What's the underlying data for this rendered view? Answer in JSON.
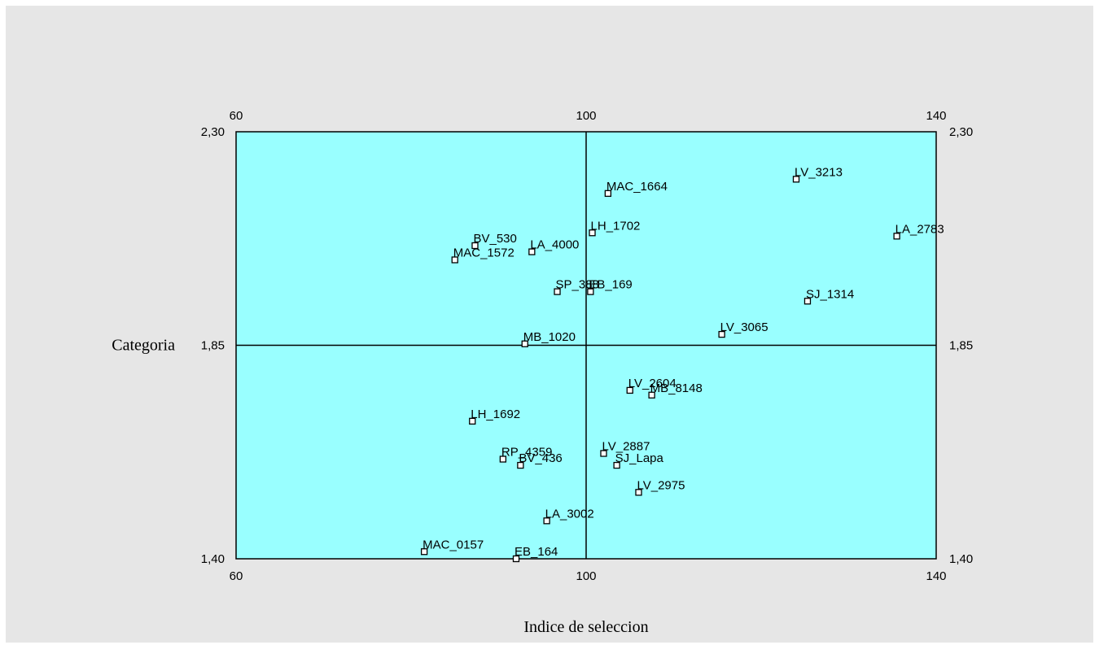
{
  "chart_data": {
    "type": "scatter",
    "title": "",
    "xlabel": "Indice de seleccion",
    "ylabel": "Categoria",
    "xlim": [
      60,
      140
    ],
    "ylim": [
      1.4,
      2.3
    ],
    "x_ticks": [
      "60",
      "100",
      "140"
    ],
    "y_ticks": [
      "1,40",
      "1,85",
      "2,30"
    ],
    "x_ref": 100,
    "y_ref": 1.85,
    "grid": false,
    "legend": "none",
    "colors": {
      "plot_bg": "#99ffff",
      "frame_bg": "#e6e6e6",
      "line": "#000000",
      "marker_fill": "#ffffff"
    },
    "points": [
      {
        "label": "LV_3213",
        "x": 124.0,
        "y": 2.2
      },
      {
        "label": "MAC_1664",
        "x": 102.5,
        "y": 2.17
      },
      {
        "label": "LA_2783",
        "x": 135.5,
        "y": 2.08
      },
      {
        "label": "LH_1702",
        "x": 100.7,
        "y": 2.087
      },
      {
        "label": "BV_530",
        "x": 87.3,
        "y": 2.06
      },
      {
        "label": "LA_4000",
        "x": 93.8,
        "y": 2.047
      },
      {
        "label": "MAC_1572",
        "x": 85.0,
        "y": 2.03
      },
      {
        "label": "SP_388",
        "x": 96.7,
        "y": 1.963
      },
      {
        "label": "EB_169",
        "x": 100.5,
        "y": 1.963
      },
      {
        "label": "SJ_1314",
        "x": 125.3,
        "y": 1.943
      },
      {
        "label": "LV_3065",
        "x": 115.5,
        "y": 1.873
      },
      {
        "label": "MB_1020",
        "x": 93.0,
        "y": 1.853
      },
      {
        "label": "LV_2604",
        "x": 105.0,
        "y": 1.755
      },
      {
        "label": "MB_8148",
        "x": 107.5,
        "y": 1.745
      },
      {
        "label": "LH_1692",
        "x": 87.0,
        "y": 1.69
      },
      {
        "label": "LV_2887",
        "x": 102.0,
        "y": 1.622
      },
      {
        "label": "RP_4359",
        "x": 90.5,
        "y": 1.61
      },
      {
        "label": "BV_436",
        "x": 92.5,
        "y": 1.597
      },
      {
        "label": "SJ_Lapa",
        "x": 103.5,
        "y": 1.597
      },
      {
        "label": "LV_2975",
        "x": 106.0,
        "y": 1.54
      },
      {
        "label": "LA_3002",
        "x": 95.5,
        "y": 1.48
      },
      {
        "label": "MAC_0157",
        "x": 81.5,
        "y": 1.415
      },
      {
        "label": "EB_164",
        "x": 92.0,
        "y": 1.4
      }
    ]
  }
}
